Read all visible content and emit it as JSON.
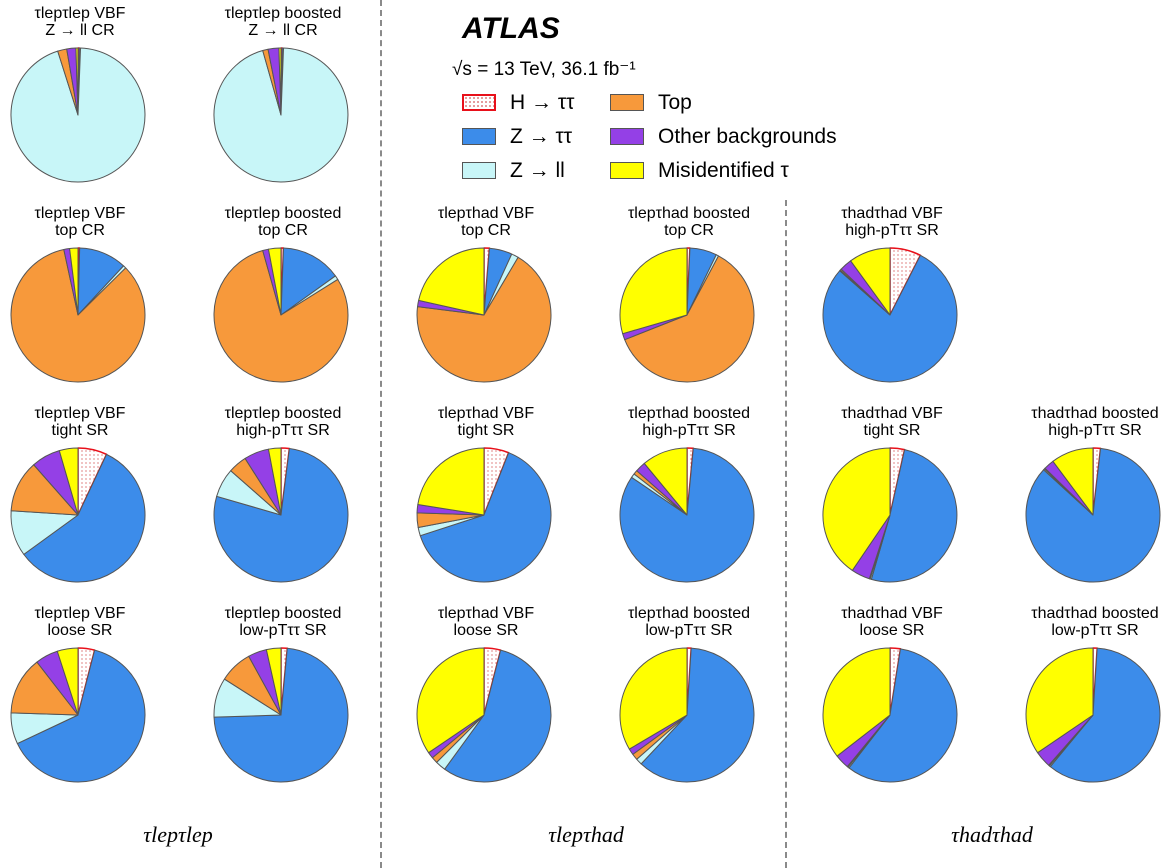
{
  "header": {
    "experiment": "ATLAS",
    "energy_text": "√s = 13 TeV, 36.1 fb⁻¹"
  },
  "legend": [
    {
      "key": "H",
      "label": "H → ττ"
    },
    {
      "key": "Top",
      "label": "Top"
    },
    {
      "key": "Ztt",
      "label": "Z → ττ"
    },
    {
      "key": "Other",
      "label": "Other backgrounds"
    },
    {
      "key": "Zll",
      "label": "Z → ll"
    },
    {
      "key": "Fake",
      "label": "Misidentified τ"
    }
  ],
  "colors": {
    "H": "#ffffff",
    "H_border": "#e8101a",
    "Top": "#f7993b",
    "Ztt": "#3c8cea",
    "Zll": "#c8f6f8",
    "Other": "#9440e6",
    "Fake": "#ffff00"
  },
  "channel_labels": [
    "τlepτlep",
    "τlepτhad",
    "τhadτhad"
  ],
  "chart_data": {
    "type": "pie",
    "order": [
      "H",
      "Ztt",
      "Zll",
      "Top",
      "Other",
      "Fake"
    ],
    "pies": [
      {
        "title1": "τlepτlep VBF",
        "title2": "Z → ll CR",
        "values": {
          "H": 0.3,
          "Ztt": 0.3,
          "Zll": 94.5,
          "Top": 2.2,
          "Other": 2.2,
          "Fake": 0.5
        }
      },
      {
        "title1": "τlepτlep boosted",
        "title2": "Z → ll CR",
        "values": {
          "H": 0.3,
          "Ztt": 0.3,
          "Zll": 95.0,
          "Top": 1.3,
          "Other": 2.6,
          "Fake": 0.5
        }
      },
      {
        "title1": "τlepτlep VBF",
        "title2": "top CR",
        "values": {
          "H": 0.4,
          "Ztt": 11.5,
          "Zll": 0.7,
          "Top": 84.0,
          "Other": 1.4,
          "Fake": 2.0
        }
      },
      {
        "title1": "τlepτlep boosted",
        "title2": "top CR",
        "values": {
          "H": 0.6,
          "Ztt": 14.5,
          "Zll": 1.0,
          "Top": 79.5,
          "Other": 1.4,
          "Fake": 3.0
        }
      },
      {
        "title1": "τlepτhad VBF",
        "title2": "top CR",
        "values": {
          "H": 1.3,
          "Ztt": 5.5,
          "Zll": 1.7,
          "Top": 68.5,
          "Other": 1.5,
          "Fake": 21.5
        }
      },
      {
        "title1": "τlepτhad boosted",
        "title2": "top CR",
        "values": {
          "H": 0.7,
          "Ztt": 6.5,
          "Zll": 0.6,
          "Top": 61.2,
          "Other": 1.5,
          "Fake": 29.5
        }
      },
      {
        "title1": "τhadτhad VBF",
        "title2": "high-pTττ SR",
        "values": {
          "H": 7.5,
          "Ztt": 79.0,
          "Zll": 0.2,
          "Top": 0.3,
          "Other": 3.0,
          "Fake": 10.0
        }
      },
      {
        "title1": "τlepτlep VBF",
        "title2": "tight SR",
        "values": {
          "H": 7.0,
          "Ztt": 58.0,
          "Zll": 11.0,
          "Top": 12.5,
          "Other": 7.0,
          "Fake": 4.5
        }
      },
      {
        "title1": "τlepτlep boosted",
        "title2": "high-pTττ SR",
        "values": {
          "H": 2.0,
          "Ztt": 77.5,
          "Zll": 7.0,
          "Top": 4.5,
          "Other": 6.0,
          "Fake": 3.0
        }
      },
      {
        "title1": "τlepτhad VBF",
        "title2": "tight SR",
        "values": {
          "H": 6.0,
          "Ztt": 64.0,
          "Zll": 2.0,
          "Top": 3.5,
          "Other": 2.0,
          "Fake": 22.5
        }
      },
      {
        "title1": "τlepτhad boosted",
        "title2": "high-pTττ SR",
        "values": {
          "H": 1.5,
          "Ztt": 83.0,
          "Zll": 1.0,
          "Top": 1.0,
          "Other": 2.5,
          "Fake": 11.0
        }
      },
      {
        "title1": "τhadτhad VBF",
        "title2": "tight SR",
        "values": {
          "H": 3.5,
          "Ztt": 51.0,
          "Zll": 0.3,
          "Top": 0.2,
          "Other": 4.5,
          "Fake": 40.5
        }
      },
      {
        "title1": "τhadτhad boosted",
        "title2": "high-pTττ SR",
        "values": {
          "H": 1.8,
          "Ztt": 85.0,
          "Zll": 0.3,
          "Top": 0.2,
          "Other": 2.5,
          "Fake": 10.2
        }
      },
      {
        "title1": "τlepτlep VBF",
        "title2": "loose SR",
        "values": {
          "H": 4.0,
          "Ztt": 64.0,
          "Zll": 7.5,
          "Top": 14.0,
          "Other": 5.5,
          "Fake": 5.0
        }
      },
      {
        "title1": "τlepτlep boosted",
        "title2": "low-pTττ SR",
        "values": {
          "H": 1.5,
          "Ztt": 73.0,
          "Zll": 9.5,
          "Top": 8.0,
          "Other": 4.5,
          "Fake": 3.5
        }
      },
      {
        "title1": "τlepτhad VBF",
        "title2": "loose SR",
        "values": {
          "H": 4.0,
          "Ztt": 56.0,
          "Zll": 2.5,
          "Top": 1.5,
          "Other": 1.5,
          "Fake": 34.5
        }
      },
      {
        "title1": "τlepτhad boosted",
        "title2": "low-pTττ SR",
        "values": {
          "H": 1.0,
          "Ztt": 61.0,
          "Zll": 1.5,
          "Top": 1.5,
          "Other": 1.5,
          "Fake": 33.5
        }
      },
      {
        "title1": "τhadτhad VBF",
        "title2": "loose SR",
        "values": {
          "H": 2.5,
          "Ztt": 58.0,
          "Zll": 0.3,
          "Top": 0.2,
          "Other": 3.5,
          "Fake": 35.5
        }
      },
      {
        "title1": "τhadτhad boosted",
        "title2": "low-pTττ SR",
        "values": {
          "H": 1.0,
          "Ztt": 60.0,
          "Zll": 0.3,
          "Top": 0.2,
          "Other": 4.0,
          "Fake": 34.5
        }
      }
    ]
  }
}
